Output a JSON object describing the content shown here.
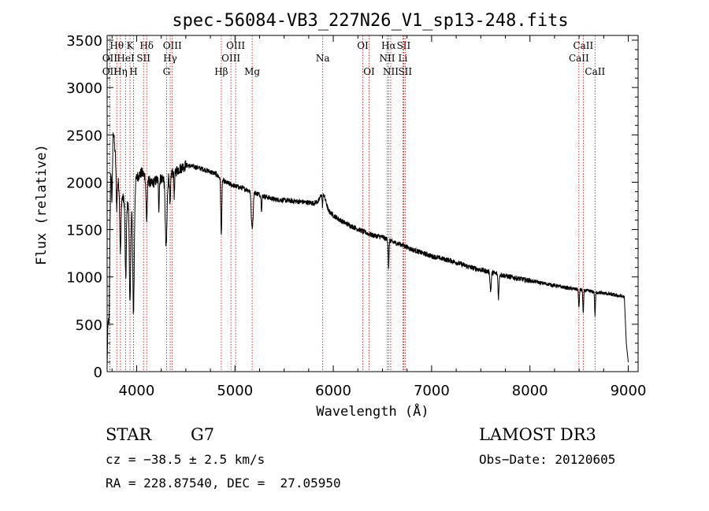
{
  "chart_data": {
    "type": "line",
    "title": "spec-56084-VB3_227N26_V1_sp13-248.fits",
    "xlabel": "Wavelength (Å)",
    "ylabel": "Flux (relative)",
    "xlim": [
      3700,
      9100
    ],
    "ylim": [
      0,
      3550
    ],
    "xticks": [
      4000,
      5000,
      6000,
      7000,
      8000,
      9000
    ],
    "yticks": [
      0,
      500,
      1000,
      1500,
      2000,
      2500,
      3000,
      3500
    ],
    "grid": false,
    "continuum": {
      "x": [
        3700,
        3750,
        3800,
        3850,
        3900,
        3950,
        4000,
        4050,
        4100,
        4150,
        4200,
        4300,
        4400,
        4500,
        4600,
        4700,
        4800,
        4900,
        5000,
        5100,
        5200,
        5300,
        5400,
        5500,
        5600,
        5700,
        5800,
        5850,
        5890,
        5910,
        5950,
        6000,
        6100,
        6200,
        6300,
        6400,
        6500,
        6600,
        6700,
        6800,
        7000,
        7200,
        7400,
        7600,
        7800,
        8000,
        8200,
        8400,
        8600,
        8800,
        8960,
        8980,
        9000
      ],
      "y": [
        60,
        2750,
        2050,
        1850,
        1750,
        1850,
        2050,
        2100,
        2050,
        1980,
        2020,
        2060,
        2120,
        2180,
        2160,
        2130,
        2090,
        2000,
        1960,
        1930,
        1890,
        1850,
        1820,
        1810,
        1800,
        1790,
        1780,
        1800,
        1900,
        1850,
        1700,
        1650,
        1580,
        1530,
        1480,
        1440,
        1420,
        1370,
        1340,
        1290,
        1220,
        1170,
        1100,
        1050,
        1000,
        960,
        920,
        880,
        850,
        820,
        790,
        300,
        100
      ]
    },
    "absorption_lines": [
      {
        "x": 3720,
        "depth": 600,
        "width": 5
      },
      {
        "x": 3750,
        "depth": 900,
        "width": 5
      },
      {
        "x": 3797,
        "depth": 350,
        "width": 5
      },
      {
        "x": 3835,
        "depth": 650,
        "width": 6
      },
      {
        "x": 3889,
        "depth": 800,
        "width": 6
      },
      {
        "x": 3933,
        "depth": 1100,
        "width": 7
      },
      {
        "x": 3968,
        "depth": 1300,
        "width": 8
      },
      {
        "x": 4102,
        "depth": 450,
        "width": 6
      },
      {
        "x": 4226,
        "depth": 300,
        "width": 4
      },
      {
        "x": 4300,
        "depth": 750,
        "width": 9
      },
      {
        "x": 4340,
        "depth": 350,
        "width": 5
      },
      {
        "x": 4383,
        "depth": 250,
        "width": 4
      },
      {
        "x": 4861,
        "depth": 600,
        "width": 5
      },
      {
        "x": 5167,
        "depth": 220,
        "width": 5
      },
      {
        "x": 5175,
        "depth": 250,
        "width": 5
      },
      {
        "x": 5183,
        "depth": 220,
        "width": 5
      },
      {
        "x": 5270,
        "depth": 150,
        "width": 4
      },
      {
        "x": 5890,
        "depth": 150,
        "width": 4
      },
      {
        "x": 6563,
        "depth": 300,
        "width": 4
      },
      {
        "x": 7600,
        "depth": 200,
        "width": 6
      },
      {
        "x": 7680,
        "depth": 250,
        "width": 5
      },
      {
        "x": 8498,
        "depth": 200,
        "width": 4
      },
      {
        "x": 8542,
        "depth": 250,
        "width": 4
      },
      {
        "x": 8662,
        "depth": 250,
        "width": 4
      }
    ],
    "noise_amplitude": 55,
    "line_markers": [
      {
        "label": "Hθ",
        "x": 3798,
        "row": 0
      },
      {
        "label": "K",
        "x": 3933,
        "row": 0
      },
      {
        "label": "Hδ",
        "x": 4102,
        "row": 0
      },
      {
        "label": "OIII",
        "x": 4363,
        "row": 0
      },
      {
        "label": "OIII",
        "x": 5007,
        "row": 0
      },
      {
        "label": "OI",
        "x": 6300,
        "row": 0
      },
      {
        "label": "Hα",
        "x": 6563,
        "row": 0
      },
      {
        "label": "SII",
        "x": 6716,
        "row": 0
      },
      {
        "label": "CaII",
        "x": 8542,
        "row": 0
      },
      {
        "label": "OII",
        "x": 3727,
        "row": 1
      },
      {
        "label": "HeI",
        "x": 3889,
        "row": 1
      },
      {
        "label": "SII",
        "x": 4070,
        "row": 1
      },
      {
        "label": "Hγ",
        "x": 4341,
        "row": 1
      },
      {
        "label": "OIII",
        "x": 4959,
        "row": 1
      },
      {
        "label": "Na",
        "x": 5893,
        "row": 1
      },
      {
        "label": "NII",
        "x": 6548,
        "row": 1
      },
      {
        "label": "Li",
        "x": 6708,
        "row": 1
      },
      {
        "label": "CaII",
        "x": 8498,
        "row": 1
      },
      {
        "label": "OII",
        "x": 3727,
        "row": 2
      },
      {
        "label": "Hη",
        "x": 3835,
        "row": 2
      },
      {
        "label": "H",
        "x": 3968,
        "row": 2
      },
      {
        "label": "G",
        "x": 4304,
        "row": 2
      },
      {
        "label": "Hβ",
        "x": 4861,
        "row": 2
      },
      {
        "label": "Mg",
        "x": 5175,
        "row": 2
      },
      {
        "label": "OI",
        "x": 6364,
        "row": 2
      },
      {
        "label": "NII",
        "x": 6584,
        "row": 2
      },
      {
        "label": "SII",
        "x": 6731,
        "row": 2
      },
      {
        "label": "CaII",
        "x": 8662,
        "row": 2
      }
    ],
    "marker_color": "#cc0000",
    "line_color": "#000000"
  },
  "info": {
    "object_type": "STAR",
    "subclass": "G7",
    "survey": "LAMOST DR3",
    "cz": "cz = −38.5 ± 2.5 km/s",
    "obs_date": "Obs−Date: 20120605",
    "coords": "RA = 228.87540, DEC =  27.05950"
  }
}
